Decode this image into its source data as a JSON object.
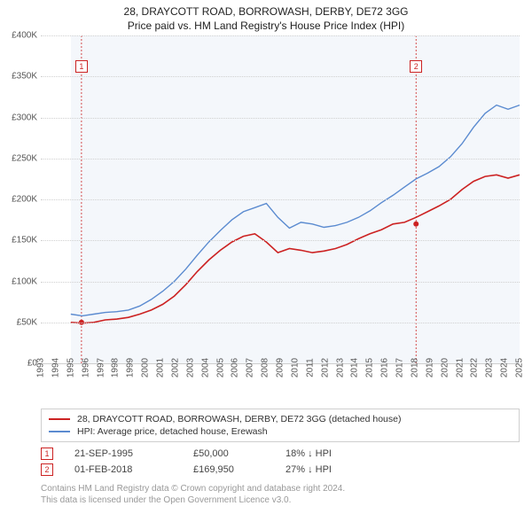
{
  "title": "28, DRAYCOTT ROAD, BORROWASH, DERBY, DE72 3GG",
  "subtitle": "Price paid vs. HM Land Registry's House Price Index (HPI)",
  "chart": {
    "type": "line",
    "background_color": "#ffffff",
    "plot_shade_color": "#f4f7fb",
    "grid_color": "#d0d0d0",
    "ylim": [
      0,
      400000
    ],
    "ytick_step": 50000,
    "ytick_labels": [
      "£0",
      "£50K",
      "£100K",
      "£150K",
      "£200K",
      "£250K",
      "£300K",
      "£350K",
      "£400K"
    ],
    "y_label_fontsize": 10,
    "x_years": [
      1993,
      1994,
      1995,
      1996,
      1997,
      1998,
      1999,
      2000,
      2001,
      2002,
      2003,
      2004,
      2005,
      2006,
      2007,
      2008,
      2009,
      2010,
      2011,
      2012,
      2013,
      2014,
      2015,
      2016,
      2017,
      2018,
      2019,
      2020,
      2021,
      2022,
      2023,
      2024,
      2025
    ],
    "x_label_fontsize": 10,
    "x_data_start_year": 1995,
    "x_data_end_year": 2025,
    "series": [
      {
        "name": "28, DRAYCOTT ROAD, BORROWASH, DERBY, DE72 3GG (detached house)",
        "color": "#cc2222",
        "line_width": 1.6,
        "values": [
          50,
          49,
          50,
          53,
          54,
          56,
          60,
          65,
          72,
          82,
          96,
          112,
          126,
          138,
          148,
          155,
          158,
          148,
          135,
          140,
          138,
          135,
          137,
          140,
          145,
          152,
          158,
          163,
          170,
          172,
          178,
          185,
          192,
          200,
          212,
          222,
          228,
          230,
          226,
          230
        ]
      },
      {
        "name": "HPI: Average price, detached house, Erewash",
        "color": "#5b8bd0",
        "line_width": 1.4,
        "values": [
          60,
          58,
          60,
          62,
          63,
          65,
          70,
          78,
          88,
          100,
          115,
          132,
          148,
          162,
          175,
          185,
          190,
          195,
          178,
          165,
          172,
          170,
          166,
          168,
          172,
          178,
          186,
          196,
          205,
          215,
          225,
          232,
          240,
          252,
          268,
          288,
          305,
          315,
          310,
          315
        ]
      }
    ],
    "markers": [
      {
        "label": "1",
        "year": 1995.72,
        "value": 50000,
        "line_color": "#cc2222"
      },
      {
        "label": "2",
        "year": 2018.08,
        "value": 169950,
        "line_color": "#cc2222"
      }
    ]
  },
  "legend": {
    "items": [
      {
        "color": "#cc2222",
        "label": "28, DRAYCOTT ROAD, BORROWASH, DERBY, DE72 3GG (detached house)"
      },
      {
        "color": "#5b8bd0",
        "label": "HPI: Average price, detached house, Erewash"
      }
    ]
  },
  "transactions": [
    {
      "marker": "1",
      "date": "21-SEP-1995",
      "price": "£50,000",
      "pct": "18% ↓ HPI"
    },
    {
      "marker": "2",
      "date": "01-FEB-2018",
      "price": "£169,950",
      "pct": "27% ↓ HPI"
    }
  ],
  "footer_line1": "Contains HM Land Registry data © Crown copyright and database right 2024.",
  "footer_line2": "This data is licensed under the Open Government Licence v3.0."
}
